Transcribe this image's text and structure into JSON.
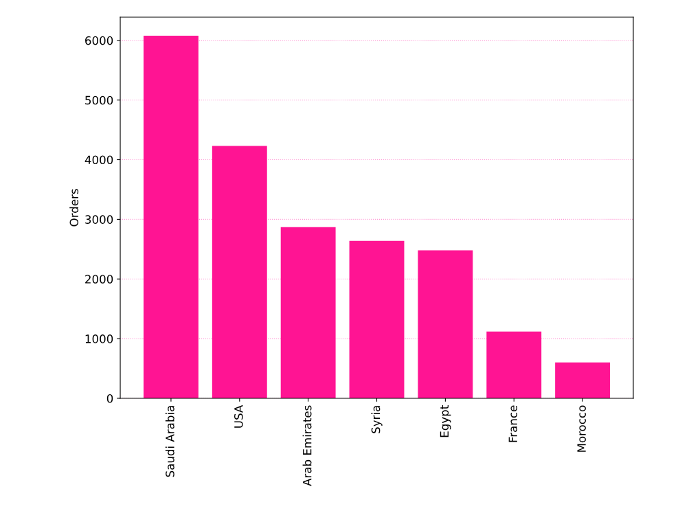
{
  "chart_data": {
    "type": "bar",
    "ylabel": "Orders",
    "categories": [
      "Saudi Arabia",
      "USA",
      "Arab Emirates",
      "Syria",
      "Egypt",
      "France",
      "Morocco"
    ],
    "values": [
      6080,
      4230,
      2870,
      2640,
      2480,
      1120,
      600
    ],
    "color": "#ff1493",
    "ylim": [
      0,
      6390
    ],
    "yticks": [
      0,
      1000,
      2000,
      3000,
      4000,
      5000,
      6000
    ],
    "grid": "y"
  }
}
